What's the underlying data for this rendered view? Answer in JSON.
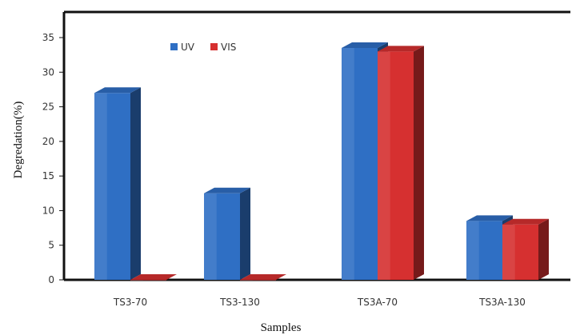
{
  "chart_data": {
    "type": "bar",
    "title": "",
    "xlabel": "Samples",
    "ylabel": "Degredation(%)",
    "categories": [
      "TS3-70",
      "TS3-130",
      "TS3A-70",
      "TS3A-130"
    ],
    "series": [
      {
        "name": "UV",
        "values": [
          27,
          12.5,
          33.5,
          8.5
        ],
        "color": "#2f6fc4"
      },
      {
        "name": "VIS",
        "values": [
          0,
          0,
          33,
          8
        ],
        "color": "#d63030"
      }
    ],
    "ylim": [
      0,
      35
    ],
    "yticks": [
      0,
      5,
      10,
      15,
      20,
      25,
      30,
      35
    ],
    "legend_position": "top-left",
    "grid": false,
    "style": "3d-bar"
  }
}
